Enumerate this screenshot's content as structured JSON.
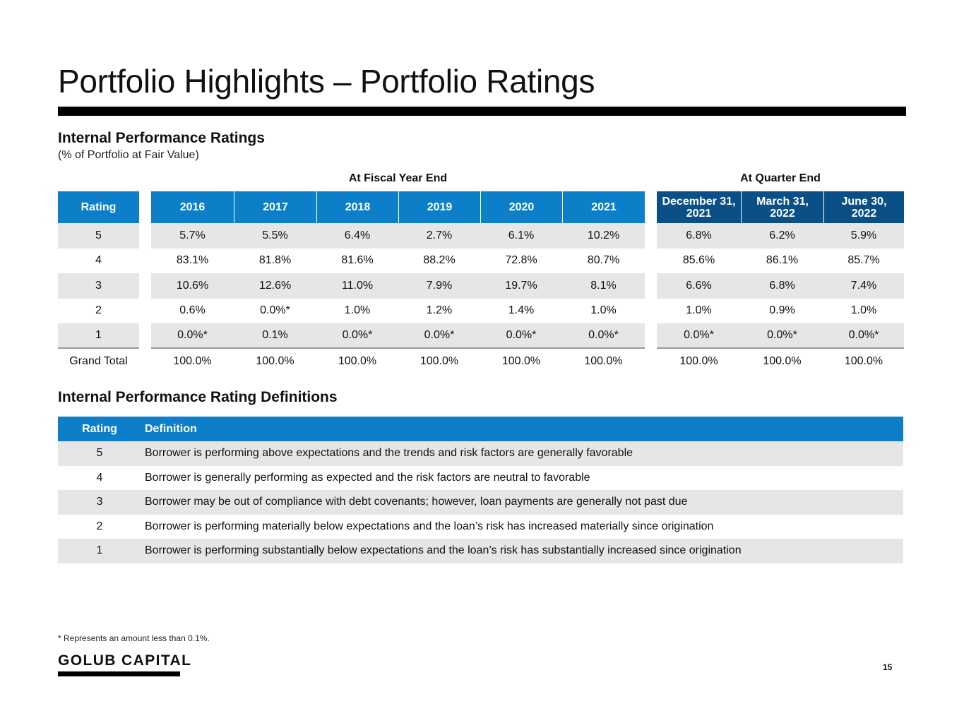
{
  "title": "Portfolio Highlights – Portfolio Ratings",
  "ratings_section": {
    "title": "Internal Performance Ratings",
    "subtitle": "(% of Portfolio at Fair Value)",
    "fiscal_group_label": "At Fiscal Year End",
    "quarter_group_label": "At Quarter End",
    "rating_header": "Rating",
    "rating_labels": [
      "5",
      "4",
      "3",
      "2",
      "1",
      "Grand Total"
    ],
    "fiscal_columns": [
      {
        "header": "2016",
        "values": [
          "5.7%",
          "83.1%",
          "10.6%",
          "0.6%",
          "0.0%*",
          "100.0%"
        ]
      },
      {
        "header": "2017",
        "values": [
          "5.5%",
          "81.8%",
          "12.6%",
          "0.0%*",
          "0.1%",
          "100.0%"
        ]
      },
      {
        "header": "2018",
        "values": [
          "6.4%",
          "81.6%",
          "11.0%",
          "1.0%",
          "0.0%*",
          "100.0%"
        ]
      },
      {
        "header": "2019",
        "values": [
          "2.7%",
          "88.2%",
          "7.9%",
          "1.2%",
          "0.0%*",
          "100.0%"
        ]
      },
      {
        "header": "2020",
        "values": [
          "6.1%",
          "72.8%",
          "19.7%",
          "1.4%",
          "0.0%*",
          "100.0%"
        ]
      },
      {
        "header": "2021",
        "values": [
          "10.2%",
          "80.7%",
          "8.1%",
          "1.0%",
          "0.0%*",
          "100.0%"
        ]
      }
    ],
    "quarter_columns": [
      {
        "header_line1": "December 31,",
        "header_line2": "2021",
        "values": [
          "6.8%",
          "85.6%",
          "6.6%",
          "1.0%",
          "0.0%*",
          "100.0%"
        ]
      },
      {
        "header_line1": "March 31,",
        "header_line2": "2022",
        "values": [
          "6.2%",
          "86.1%",
          "6.8%",
          "0.9%",
          "0.0%*",
          "100.0%"
        ]
      },
      {
        "header_line1": "June 30,",
        "header_line2": "2022",
        "values": [
          "5.9%",
          "85.7%",
          "7.4%",
          "1.0%",
          "0.0%*",
          "100.0%"
        ]
      }
    ]
  },
  "definitions_section": {
    "title": "Internal Performance Rating Definitions",
    "header_rating": "Rating",
    "header_definition": "Definition",
    "rows": [
      {
        "rating": "5",
        "definition": "Borrower is performing above expectations and the trends and risk factors are generally favorable"
      },
      {
        "rating": "4",
        "definition": "Borrower is generally performing as expected and the risk factors are neutral to favorable"
      },
      {
        "rating": "3",
        "definition": "Borrower may be out of compliance with debt covenants; however, loan payments are generally not past due"
      },
      {
        "rating": "2",
        "definition": "Borrower is performing materially below expectations and the loan’s risk has increased materially since origination"
      },
      {
        "rating": "1",
        "definition": "Borrower is performing substantially below expectations and the loan’s risk has substantially increased since origination"
      }
    ]
  },
  "footnote": "* Represents an amount less than 0.1%.",
  "logo_text": "GOLUB CAPITAL",
  "page_number": "15",
  "colors": {
    "header_blue": "#0d7fc9",
    "header_navy": "#0a4f86",
    "row_shade": "#e6e6e6"
  }
}
